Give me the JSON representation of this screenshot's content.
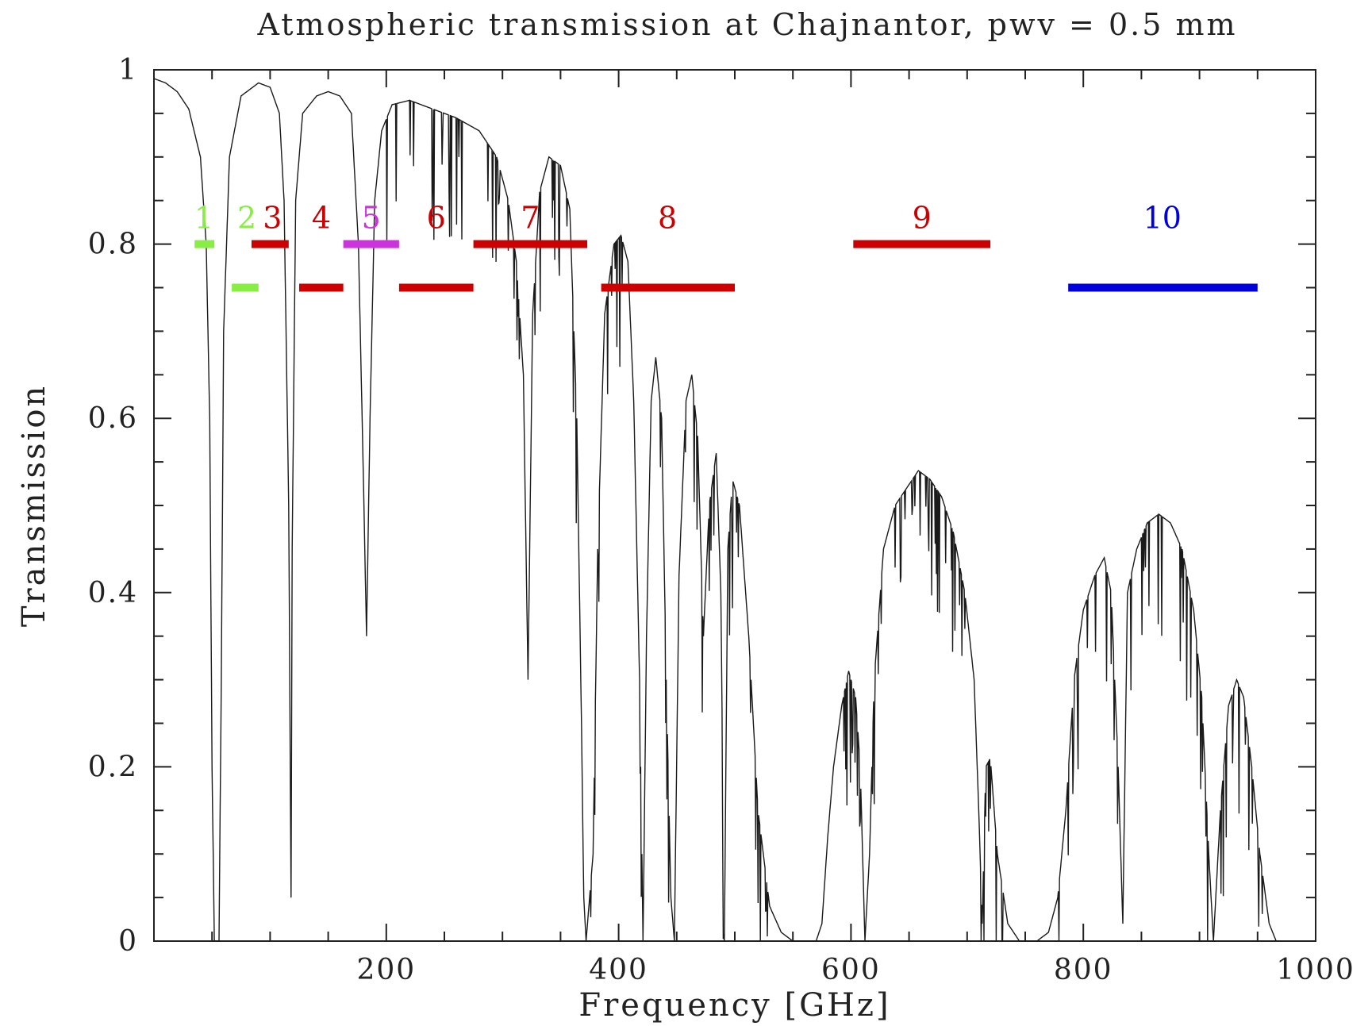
{
  "chart_data": {
    "type": "line",
    "title": "Atmospheric transmission at Chajnantor, pwv = 0.5 mm",
    "xlabel": "Frequency [GHz]",
    "ylabel": "Transmission",
    "xlim": [
      0,
      1000
    ],
    "ylim": [
      0,
      1
    ],
    "x_ticks": [
      {
        "value": 200,
        "label": "200"
      },
      {
        "value": 400,
        "label": "400"
      },
      {
        "value": 600,
        "label": "600"
      },
      {
        "value": 800,
        "label": "800"
      },
      {
        "value": 1000,
        "label": "1000"
      }
    ],
    "y_ticks": [
      {
        "value": 0,
        "label": "0"
      },
      {
        "value": 0.2,
        "label": "0.2"
      },
      {
        "value": 0.4,
        "label": "0.4"
      },
      {
        "value": 0.6,
        "label": "0.6"
      },
      {
        "value": 0.8,
        "label": "0.8"
      },
      {
        "value": 1,
        "label": "1"
      }
    ],
    "grid": false,
    "series": [
      {
        "color": "#1a1a1a",
        "envelope": [
          [
            0,
            0.99
          ],
          [
            10,
            0.985
          ],
          [
            20,
            0.975
          ],
          [
            30,
            0.955
          ],
          [
            40,
            0.9
          ],
          [
            45,
            0.8
          ],
          [
            48,
            0.6
          ],
          [
            50,
            0.2
          ],
          [
            52,
            0
          ],
          [
            56,
            0
          ],
          [
            58,
            0.3
          ],
          [
            60,
            0.7
          ],
          [
            65,
            0.9
          ],
          [
            75,
            0.97
          ],
          [
            90,
            0.985
          ],
          [
            100,
            0.98
          ],
          [
            108,
            0.95
          ],
          [
            112,
            0.85
          ],
          [
            116,
            0.5
          ],
          [
            118,
            0.05
          ],
          [
            119,
            0.45
          ],
          [
            122,
            0.85
          ],
          [
            128,
            0.95
          ],
          [
            140,
            0.97
          ],
          [
            150,
            0.975
          ],
          [
            160,
            0.97
          ],
          [
            170,
            0.95
          ],
          [
            176,
            0.8
          ],
          [
            180,
            0.55
          ],
          [
            183,
            0.35
          ],
          [
            186,
            0.6
          ],
          [
            190,
            0.85
          ],
          [
            196,
            0.93
          ],
          [
            205,
            0.96
          ],
          [
            220,
            0.965
          ],
          [
            240,
            0.955
          ],
          [
            260,
            0.945
          ],
          [
            280,
            0.93
          ],
          [
            295,
            0.9
          ],
          [
            305,
            0.85
          ],
          [
            312,
            0.78
          ],
          [
            318,
            0.65
          ],
          [
            322,
            0.3
          ],
          [
            326,
            0.72
          ],
          [
            332,
            0.86
          ],
          [
            340,
            0.9
          ],
          [
            350,
            0.89
          ],
          [
            358,
            0.84
          ],
          [
            364,
            0.6
          ],
          [
            368,
            0.25
          ],
          [
            370,
            0.05
          ],
          [
            372,
            0
          ],
          [
            378,
            0.1
          ],
          [
            382,
            0.45
          ],
          [
            388,
            0.72
          ],
          [
            396,
            0.8
          ],
          [
            402,
            0.81
          ],
          [
            408,
            0.78
          ],
          [
            413,
            0.62
          ],
          [
            418,
            0.3
          ],
          [
            421,
            0
          ],
          [
            424,
            0.35
          ],
          [
            428,
            0.62
          ],
          [
            432,
            0.67
          ],
          [
            437,
            0.6
          ],
          [
            441,
            0.3
          ],
          [
            445,
            0.05
          ],
          [
            448,
            0
          ],
          [
            452,
            0.42
          ],
          [
            458,
            0.62
          ],
          [
            463,
            0.65
          ],
          [
            468,
            0.58
          ],
          [
            473,
            0.35
          ],
          [
            478,
            0.5
          ],
          [
            484,
            0.56
          ],
          [
            488,
            0.4
          ],
          [
            491,
            0.0
          ],
          [
            494,
            0.45
          ],
          [
            498,
            0.53
          ],
          [
            504,
            0.5
          ],
          [
            512,
            0.35
          ],
          [
            520,
            0.15
          ],
          [
            530,
            0.04
          ],
          [
            540,
            0.01
          ],
          [
            550,
            0
          ],
          [
            570,
            0
          ],
          [
            575,
            0.02
          ],
          [
            580,
            0.12
          ],
          [
            585,
            0.2
          ],
          [
            592,
            0.27
          ],
          [
            598,
            0.31
          ],
          [
            604,
            0.28
          ],
          [
            608,
            0.2
          ],
          [
            612,
            0.0
          ],
          [
            616,
            0.1
          ],
          [
            620,
            0.3
          ],
          [
            628,
            0.45
          ],
          [
            638,
            0.5
          ],
          [
            648,
            0.52
          ],
          [
            658,
            0.54
          ],
          [
            668,
            0.53
          ],
          [
            678,
            0.51
          ],
          [
            688,
            0.47
          ],
          [
            698,
            0.4
          ],
          [
            706,
            0.3
          ],
          [
            710,
            0.15
          ],
          [
            713,
            0.02
          ],
          [
            716,
            0.2
          ],
          [
            720,
            0.21
          ],
          [
            726,
            0.1
          ],
          [
            735,
            0.02
          ],
          [
            745,
            0.0
          ],
          [
            760,
            0
          ],
          [
            770,
            0.01
          ],
          [
            778,
            0.05
          ],
          [
            785,
            0.15
          ],
          [
            792,
            0.3
          ],
          [
            800,
            0.38
          ],
          [
            810,
            0.42
          ],
          [
            818,
            0.44
          ],
          [
            824,
            0.4
          ],
          [
            830,
            0.2
          ],
          [
            834,
            0.02
          ],
          [
            838,
            0.4
          ],
          [
            846,
            0.45
          ],
          [
            855,
            0.48
          ],
          [
            865,
            0.49
          ],
          [
            875,
            0.48
          ],
          [
            885,
            0.45
          ],
          [
            895,
            0.38
          ],
          [
            902,
            0.28
          ],
          [
            908,
            0.1
          ],
          [
            912,
            0.0
          ],
          [
            918,
            0.15
          ],
          [
            925,
            0.27
          ],
          [
            932,
            0.3
          ],
          [
            938,
            0.28
          ],
          [
            945,
            0.2
          ],
          [
            952,
            0.1
          ],
          [
            960,
            0.02
          ],
          [
            966,
            0
          ]
        ]
      }
    ],
    "bands": [
      {
        "label": "1",
        "x": [
          35,
          52
        ],
        "y": 0.8,
        "color": "#88ee44",
        "label_x": 43
      },
      {
        "label": "2",
        "x": [
          67,
          90
        ],
        "y": 0.75,
        "color": "#88ee44",
        "label_x": 80
      },
      {
        "label": "3",
        "x": [
          84,
          116
        ],
        "y": 0.8,
        "color": "#cc0000",
        "label_x": 102
      },
      {
        "label": "4",
        "x": [
          125,
          163
        ],
        "y": 0.75,
        "color": "#cc0000",
        "label_x": 144
      },
      {
        "label": "5",
        "x": [
          163,
          211
        ],
        "y": 0.8,
        "color": "#cc33dd",
        "label_x": 187
      },
      {
        "label": "6",
        "x": [
          211,
          275
        ],
        "y": 0.75,
        "color": "#cc0000",
        "label_x": 243
      },
      {
        "label": "7",
        "x": [
          275,
          373
        ],
        "y": 0.8,
        "color": "#cc0000",
        "label_x": 324
      },
      {
        "label": "8",
        "x": [
          385,
          500
        ],
        "y": 0.75,
        "color": "#cc0000",
        "label_x": 442
      },
      {
        "label": "9",
        "x": [
          602,
          720
        ],
        "y": 0.8,
        "color": "#cc0000",
        "label_x": 661
      },
      {
        "label": "10",
        "x": [
          787,
          950
        ],
        "y": 0.75,
        "color": "#0000dd",
        "label_x": 868
      }
    ]
  }
}
